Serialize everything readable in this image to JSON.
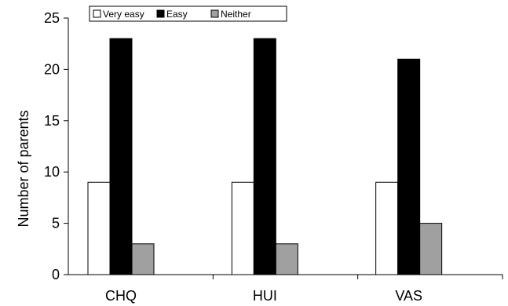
{
  "chart_data": {
    "type": "bar",
    "title": "",
    "xlabel": "",
    "ylabel": "Number of parents",
    "ylim": [
      0,
      25
    ],
    "yticks": [
      0,
      5,
      10,
      15,
      20,
      25
    ],
    "grid": false,
    "legend_position": "top-left",
    "categories": [
      "CHQ",
      "HUI",
      "VAS"
    ],
    "series": [
      {
        "name": "Very easy",
        "color": "#ffffff",
        "values": [
          9,
          9,
          9
        ]
      },
      {
        "name": "Easy",
        "color": "#000000",
        "values": [
          23,
          23,
          21
        ]
      },
      {
        "name": "Neither",
        "color": "#a0a0a0",
        "values": [
          3,
          3,
          5
        ]
      }
    ]
  }
}
